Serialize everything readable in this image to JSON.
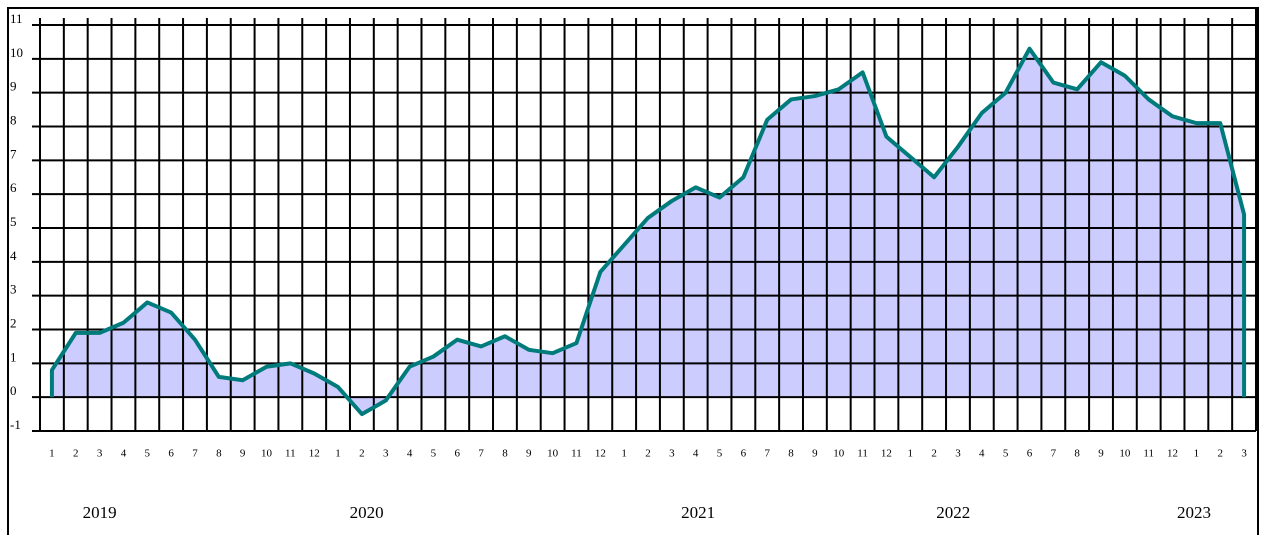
{
  "chart_data": {
    "type": "area",
    "categories": [
      "1",
      "2",
      "3",
      "4",
      "5",
      "6",
      "7",
      "8",
      "9",
      "10",
      "11",
      "12",
      "1",
      "2",
      "3",
      "4",
      "5",
      "6",
      "7",
      "8",
      "9",
      "10",
      "11",
      "12",
      "1",
      "2",
      "3",
      "4",
      "5",
      "6",
      "7",
      "8",
      "9",
      "10",
      "11",
      "12",
      "1",
      "2",
      "3",
      "4",
      "5",
      "6",
      "7",
      "8",
      "9",
      "10",
      "11",
      "12",
      "1",
      "2",
      "3"
    ],
    "values": [
      0.8,
      1.9,
      1.9,
      2.2,
      2.8,
      2.5,
      1.7,
      0.6,
      0.5,
      0.9,
      1.0,
      0.7,
      0.3,
      -0.5,
      -0.1,
      0.9,
      1.2,
      1.7,
      1.5,
      1.8,
      1.4,
      1.3,
      1.6,
      3.7,
      4.5,
      5.3,
      5.8,
      6.2,
      5.9,
      6.5,
      8.2,
      8.8,
      8.9,
      9.1,
      9.6,
      7.7,
      7.1,
      6.5,
      7.4,
      8.4,
      9.0,
      10.3,
      9.3,
      9.1,
      9.9,
      9.5,
      8.8,
      8.3,
      8.1,
      8.1,
      5.4
    ],
    "year_labels": [
      "2019",
      "2020",
      "2021",
      "2022",
      "2023"
    ],
    "color": "#007b7b",
    "fill": "#ccccff",
    "ylim": [
      -1,
      11
    ],
    "yticks": [
      -1,
      0,
      1,
      2,
      3,
      4,
      5,
      6,
      7,
      8,
      9,
      10,
      11
    ],
    "grid": true
  }
}
